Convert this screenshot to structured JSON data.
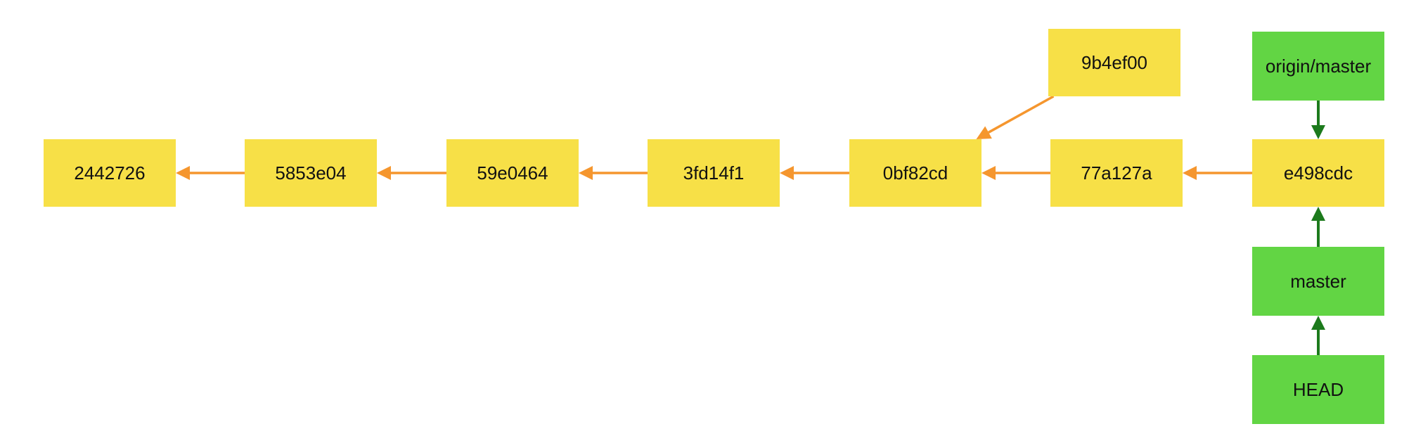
{
  "colors": {
    "commit_fill": "#f7e047",
    "ref_fill": "#62d544",
    "commit_edge": "#f5962e",
    "ref_edge": "#1c7a1c",
    "background": "#ffffff"
  },
  "commits": [
    {
      "id": "c1",
      "label": "2442726"
    },
    {
      "id": "c2",
      "label": "5853e04"
    },
    {
      "id": "c3",
      "label": "59e0464"
    },
    {
      "id": "c4",
      "label": "3fd14f1"
    },
    {
      "id": "c5",
      "label": "0bf82cd"
    },
    {
      "id": "c6",
      "label": "77a127a"
    },
    {
      "id": "c7",
      "label": "e498cdc"
    },
    {
      "id": "c8",
      "label": "9b4ef00"
    }
  ],
  "refs": [
    {
      "id": "r1",
      "label": "origin/master"
    },
    {
      "id": "r2",
      "label": "master"
    },
    {
      "id": "r3",
      "label": "HEAD"
    }
  ],
  "edges": [
    {
      "from": "c2",
      "to": "c1",
      "kind": "parent"
    },
    {
      "from": "c3",
      "to": "c2",
      "kind": "parent"
    },
    {
      "from": "c4",
      "to": "c3",
      "kind": "parent"
    },
    {
      "from": "c5",
      "to": "c4",
      "kind": "parent"
    },
    {
      "from": "c6",
      "to": "c5",
      "kind": "parent"
    },
    {
      "from": "c7",
      "to": "c6",
      "kind": "parent"
    },
    {
      "from": "c8",
      "to": "c5",
      "kind": "parent"
    },
    {
      "from": "r1",
      "to": "c7",
      "kind": "ref"
    },
    {
      "from": "r2",
      "to": "c7",
      "kind": "ref"
    },
    {
      "from": "r3",
      "to": "r2",
      "kind": "ref"
    }
  ]
}
